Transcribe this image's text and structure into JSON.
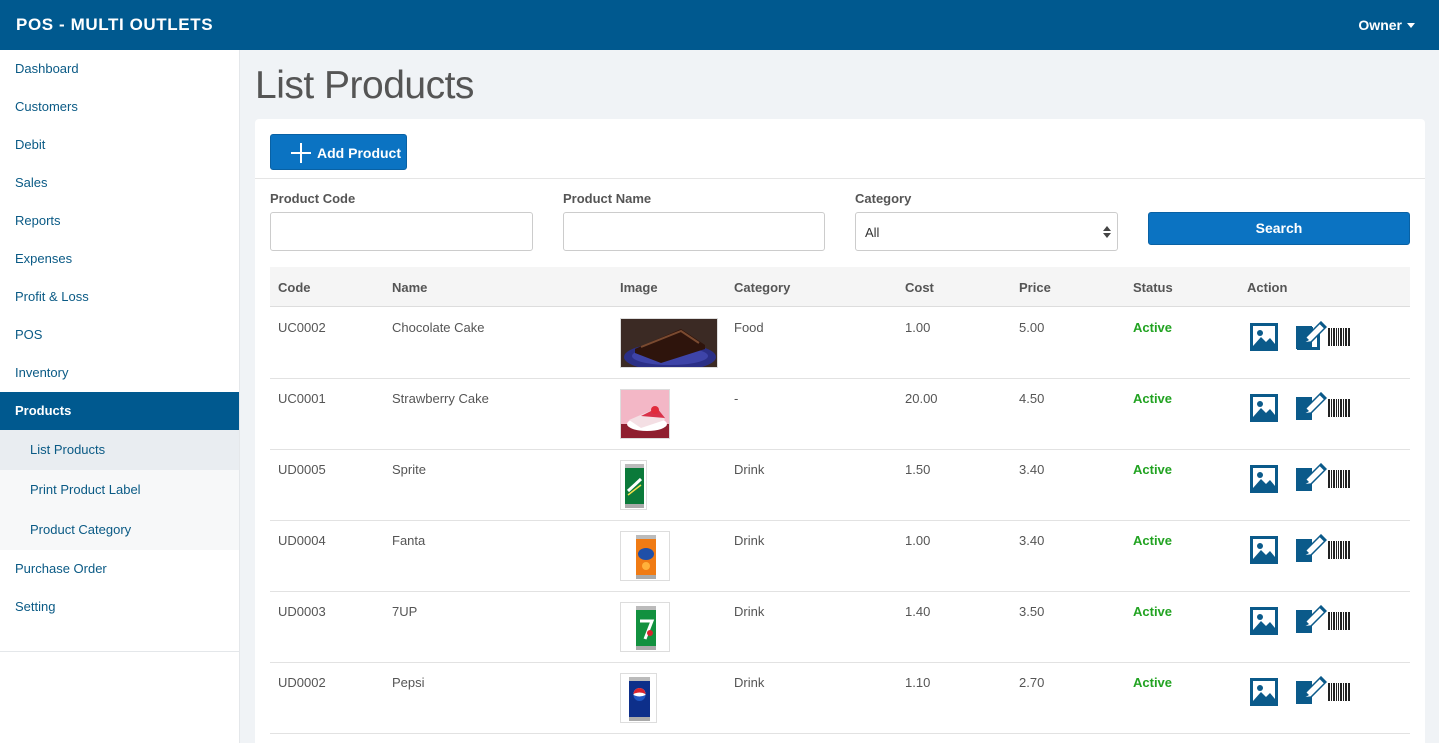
{
  "header": {
    "title": "POS - MULTI OUTLETS",
    "user": "Owner"
  },
  "sidebar": {
    "items_top": [
      {
        "label": "Dashboard"
      },
      {
        "label": "Customers"
      },
      {
        "label": "Debit"
      },
      {
        "label": "Sales"
      },
      {
        "label": "Reports"
      },
      {
        "label": "Expenses"
      },
      {
        "label": "Profit & Loss"
      },
      {
        "label": "POS"
      },
      {
        "label": "Inventory"
      }
    ],
    "active": {
      "label": "Products"
    },
    "sub_items": [
      {
        "label": "List Products"
      },
      {
        "label": "Print Product Label"
      },
      {
        "label": "Product Category"
      }
    ],
    "items_bottom": [
      {
        "label": "Purchase Order"
      },
      {
        "label": "Setting"
      }
    ]
  },
  "page": {
    "title": "List Products"
  },
  "toolbar": {
    "add_label": "Add Product"
  },
  "filters": {
    "code_label": "Product Code",
    "code_value": "",
    "name_label": "Product Name",
    "name_value": "",
    "category_label": "Category",
    "category_value": "All",
    "search_label": "Search"
  },
  "table": {
    "headers": [
      "Code",
      "Name",
      "Image",
      "Category",
      "Cost",
      "Price",
      "Status",
      "Action"
    ],
    "rows": [
      {
        "code": "UC0002",
        "name": "Chocolate Cake",
        "category": "Food",
        "cost": "1.00",
        "price": "5.00",
        "status": "Active",
        "image": "chocolate-cake-thumbnail"
      },
      {
        "code": "UC0001",
        "name": "Strawberry Cake",
        "category": "-",
        "cost": "20.00",
        "price": "4.50",
        "status": "Active",
        "image": "strawberry-cake-thumbnail"
      },
      {
        "code": "UD0005",
        "name": "Sprite",
        "category": "Drink",
        "cost": "1.50",
        "price": "3.40",
        "status": "Active",
        "image": "sprite-can-thumbnail"
      },
      {
        "code": "UD0004",
        "name": "Fanta",
        "category": "Drink",
        "cost": "1.00",
        "price": "3.40",
        "status": "Active",
        "image": "fanta-can-thumbnail"
      },
      {
        "code": "UD0003",
        "name": "7UP",
        "category": "Drink",
        "cost": "1.40",
        "price": "3.50",
        "status": "Active",
        "image": "7up-can-thumbnail"
      },
      {
        "code": "UD0002",
        "name": "Pepsi",
        "category": "Drink",
        "cost": "1.10",
        "price": "2.70",
        "status": "Active",
        "image": "pepsi-can-thumbnail"
      }
    ]
  },
  "colors": {
    "brand": "#00598f",
    "button": "#0b73c2",
    "active_status": "#22a322",
    "icon": "#0b5a8a"
  },
  "icons": {
    "row_image": "picture-icon",
    "row_edit": "edit-icon",
    "row_barcode": "barcode-icon"
  }
}
